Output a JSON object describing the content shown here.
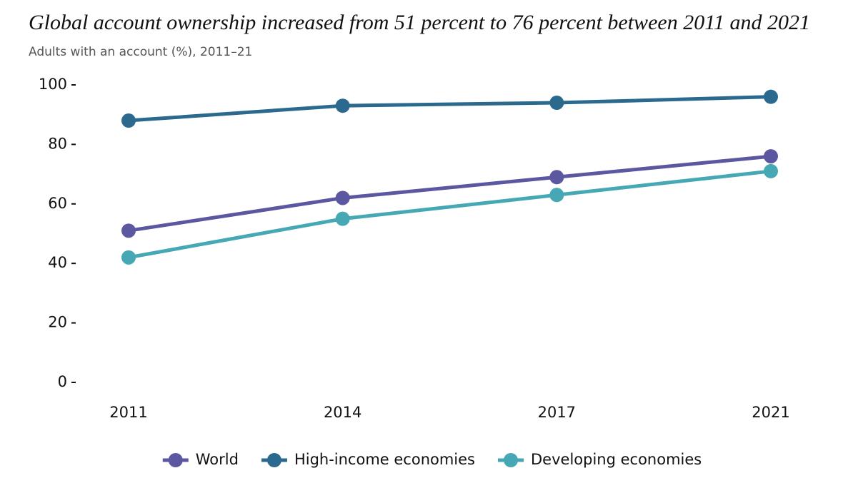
{
  "chart_data": {
    "type": "line",
    "title": "Global account ownership increased from 51 percent to 76 percent between 2011 and 2021",
    "subtitle": "Adults with an account (%), 2011–21",
    "categories": [
      "2011",
      "2014",
      "2017",
      "2021"
    ],
    "series": [
      {
        "name": "World",
        "color": "#5b57a0",
        "values": [
          51,
          62,
          69,
          76
        ]
      },
      {
        "name": "High-income economies",
        "color": "#2b6a8e",
        "values": [
          88,
          93,
          94,
          96
        ]
      },
      {
        "name": "Developing economies",
        "color": "#45a8b4",
        "values": [
          42,
          55,
          63,
          71
        ]
      }
    ],
    "ylim": [
      0,
      100
    ],
    "yticks": [
      0,
      20,
      40,
      60,
      80,
      100
    ],
    "grid": false,
    "legend": "bottom"
  }
}
